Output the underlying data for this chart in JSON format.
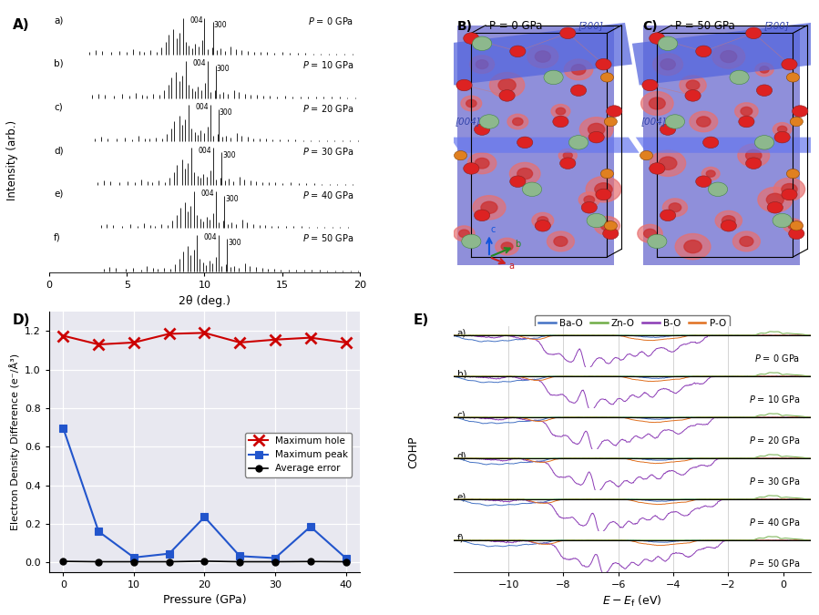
{
  "xrd_pressures": [
    "0 GPa",
    "10 GPa",
    "20 GPa",
    "30 GPa",
    "40 GPa",
    "50 GPa"
  ],
  "xrd_labels": [
    "a)",
    "b)",
    "c)",
    "d)",
    "e)",
    "f)"
  ],
  "xrd_xlim": [
    0,
    20
  ],
  "xrd_xlabel": "2θ (deg.)",
  "xrd_ylabel": "Intensity (arb.)",
  "edd_pressures": [
    0,
    5,
    10,
    15,
    20,
    25,
    30,
    35,
    40
  ],
  "edd_max_hole": [
    1.175,
    1.13,
    1.14,
    1.185,
    1.19,
    1.14,
    1.155,
    1.165,
    1.14
  ],
  "edd_max_peak": [
    0.695,
    0.16,
    0.025,
    0.045,
    0.235,
    0.032,
    0.022,
    0.185,
    0.022
  ],
  "edd_avg_error": [
    0.005,
    0.003,
    0.003,
    0.003,
    0.006,
    0.003,
    0.003,
    0.004,
    0.003
  ],
  "edd_xlabel": "Pressure (GPa)",
  "edd_ylabel": "Electron Density Difference (e⁻/Å³)",
  "edd_ylim": [
    -0.05,
    1.3
  ],
  "edd_xlim": [
    -2,
    42
  ],
  "cohp_pressures": [
    "0 GPa",
    "10 GPa",
    "20 GPa",
    "30 GPa",
    "40 GPa",
    "50 GPa"
  ],
  "cohp_labels": [
    "a)",
    "b)",
    "c)",
    "d)",
    "e)",
    "f)"
  ],
  "cohp_xlim": [
    -12,
    1
  ],
  "cohp_xlabel": "$E - E_\\mathrm{f}$ (eV)",
  "cohp_ylabel": "COHP",
  "cohp_legend": [
    "Ba-O",
    "Zn-O",
    "B-O",
    "P-O"
  ],
  "cohp_colors": [
    "#4472C4",
    "#70AD47",
    "#8B3AB5",
    "#E07020"
  ],
  "color_max_hole": "#CC0000",
  "color_max_peak": "#2255CC",
  "color_avg_error": "#000000",
  "bg_color": "#E8E8F0",
  "crystal_B_bg": "#7777CC",
  "crystal_C_bg": "#7777CC",
  "atom_red": "#DD2222",
  "atom_green": "#5DB55D",
  "atom_orange": "#E08020",
  "atom_dark_green": "#228822"
}
